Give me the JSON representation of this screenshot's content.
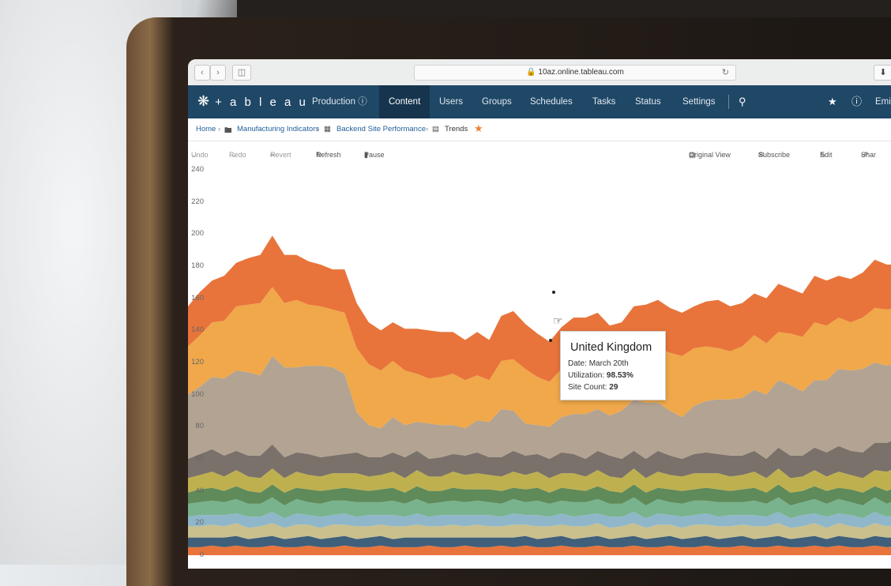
{
  "browser": {
    "url": "10az.online.tableau.com",
    "back_icon": "chevron-left-icon",
    "forward_icon": "chevron-right-icon",
    "sidebar_icon": "sidebar-icon",
    "reload_icon": "reload-icon",
    "download_icon": "download-icon"
  },
  "nav": {
    "logo_text": "+ a b l e a u",
    "site": "Production",
    "items": [
      "Content",
      "Users",
      "Groups",
      "Schedules",
      "Tasks",
      "Status",
      "Settings"
    ],
    "active": "Content",
    "user": "Emi"
  },
  "breadcrumb": {
    "home": "Home",
    "project": "Manufacturing Indicators",
    "workbook": "Backend Site Performance",
    "view": "Trends"
  },
  "toolbar": {
    "undo": "Undo",
    "redo": "Redo",
    "revert": "Revert",
    "refresh": "Refresh",
    "pause": "Pause",
    "original_view": "Original View",
    "subscribe": "Subscribe",
    "edit": "Edit",
    "share": "Shar"
  },
  "tooltip": {
    "title": "United Kingdom",
    "date_label": "Date:",
    "date_value": "March 20th",
    "util_label": "Utilization:",
    "util_value": "98.53%",
    "count_label": "Site Count:",
    "count_value": "29"
  },
  "colors": {
    "nav_bg": "#1f4766",
    "accent_orange": "#e8743b",
    "series": [
      "#e8743b",
      "#f0a84a",
      "#b3a392",
      "#7a716a",
      "#bfb04f",
      "#5f8a5a",
      "#79b38e",
      "#8fb7c9",
      "#c9c08e",
      "#3f5f7a"
    ]
  },
  "chart_data": {
    "type": "area",
    "stacked": true,
    "yticks": [
      0,
      20,
      40,
      60,
      80,
      100,
      120,
      140,
      160,
      180,
      200,
      220,
      240
    ],
    "ylim": [
      0,
      240
    ],
    "xcount": 60,
    "series": [
      {
        "values": [
          5,
          5,
          6,
          5,
          6,
          5,
          5,
          6,
          5,
          5,
          6,
          5,
          5,
          6,
          5,
          5,
          6,
          5,
          5,
          5,
          6,
          5,
          5,
          6,
          5,
          5,
          6,
          5,
          6,
          5,
          5,
          6,
          5,
          5,
          6,
          5,
          5,
          6,
          5,
          5,
          6,
          5,
          5,
          6,
          5,
          5,
          6,
          5,
          5,
          6,
          5,
          5,
          6,
          5,
          6,
          5,
          5,
          6,
          5,
          6
        ]
      },
      {
        "values": [
          6,
          6,
          5,
          6,
          6,
          5,
          6,
          6,
          5,
          6,
          6,
          5,
          6,
          6,
          5,
          6,
          6,
          5,
          6,
          6,
          5,
          6,
          6,
          5,
          6,
          6,
          5,
          6,
          6,
          5,
          6,
          6,
          5,
          6,
          6,
          5,
          6,
          6,
          5,
          6,
          6,
          5,
          6,
          6,
          5,
          6,
          6,
          5,
          6,
          6,
          5,
          6,
          6,
          5,
          6,
          6,
          5,
          6,
          6,
          5
        ]
      },
      {
        "values": [
          7,
          7,
          8,
          7,
          8,
          7,
          7,
          8,
          7,
          8,
          7,
          7,
          8,
          7,
          8,
          7,
          7,
          8,
          7,
          8,
          7,
          7,
          8,
          7,
          8,
          7,
          7,
          8,
          7,
          8,
          7,
          7,
          8,
          7,
          8,
          7,
          7,
          8,
          7,
          8,
          7,
          7,
          8,
          7,
          8,
          7,
          7,
          8,
          7,
          8,
          7,
          7,
          8,
          7,
          8,
          7,
          7,
          8,
          7,
          8
        ]
      },
      {
        "values": [
          6,
          7,
          6,
          7,
          6,
          7,
          6,
          7,
          6,
          7,
          6,
          7,
          6,
          7,
          6,
          7,
          6,
          7,
          6,
          7,
          6,
          7,
          6,
          7,
          6,
          7,
          6,
          7,
          6,
          7,
          6,
          7,
          6,
          7,
          6,
          7,
          6,
          7,
          6,
          7,
          6,
          7,
          6,
          7,
          6,
          7,
          6,
          7,
          6,
          7,
          6,
          7,
          6,
          7,
          6,
          7,
          6,
          7,
          6,
          7
        ]
      },
      {
        "values": [
          8,
          8,
          9,
          8,
          9,
          8,
          8,
          9,
          8,
          9,
          8,
          8,
          9,
          8,
          9,
          8,
          8,
          9,
          8,
          9,
          8,
          8,
          9,
          8,
          9,
          8,
          8,
          9,
          8,
          9,
          8,
          8,
          9,
          8,
          9,
          8,
          8,
          9,
          8,
          9,
          8,
          8,
          9,
          8,
          9,
          8,
          8,
          9,
          8,
          9,
          8,
          8,
          9,
          8,
          9,
          8,
          8,
          9,
          8,
          9
        ]
      },
      {
        "values": [
          7,
          8,
          8,
          7,
          8,
          8,
          7,
          8,
          8,
          7,
          8,
          8,
          7,
          8,
          8,
          7,
          8,
          8,
          7,
          8,
          8,
          7,
          8,
          8,
          7,
          8,
          8,
          7,
          8,
          8,
          7,
          8,
          8,
          7,
          8,
          8,
          7,
          8,
          8,
          7,
          8,
          8,
          7,
          8,
          8,
          7,
          8,
          8,
          7,
          8,
          8,
          7,
          8,
          8,
          7,
          8,
          8,
          7,
          8,
          8
        ]
      },
      {
        "values": [
          9,
          9,
          10,
          9,
          10,
          9,
          9,
          10,
          9,
          10,
          9,
          9,
          10,
          9,
          10,
          9,
          9,
          10,
          9,
          10,
          9,
          9,
          10,
          9,
          10,
          9,
          9,
          10,
          9,
          10,
          9,
          9,
          10,
          9,
          10,
          9,
          9,
          10,
          9,
          10,
          9,
          9,
          10,
          9,
          10,
          9,
          9,
          10,
          9,
          10,
          9,
          9,
          10,
          9,
          10,
          9,
          9,
          10,
          12,
          12
        ]
      },
      {
        "values": [
          12,
          13,
          14,
          13,
          12,
          13,
          14,
          15,
          13,
          12,
          13,
          12,
          11,
          12,
          13,
          12,
          11,
          12,
          13,
          12,
          11,
          12,
          11,
          12,
          13,
          11,
          12,
          13,
          12,
          11,
          12,
          13,
          12,
          11,
          12,
          13,
          12,
          11,
          12,
          13,
          12,
          11,
          12,
          13,
          12,
          13,
          12,
          13,
          12,
          13,
          14,
          13,
          14,
          15,
          16,
          15,
          16,
          17,
          18,
          18
        ]
      },
      {
        "values": [
          40,
          42,
          45,
          48,
          50,
          52,
          50,
          55,
          56,
          53,
          55,
          57,
          55,
          50,
          25,
          20,
          18,
          22,
          20,
          18,
          22,
          20,
          18,
          17,
          20,
          22,
          30,
          25,
          20,
          18,
          20,
          22,
          25,
          28,
          26,
          25,
          30,
          32,
          35,
          30,
          28,
          26,
          30,
          32,
          34,
          35,
          36,
          38,
          40,
          42,
          44,
          40,
          42,
          45,
          48,
          50,
          52,
          50,
          48,
          47
        ]
      },
      {
        "values": [
          30,
          32,
          34,
          36,
          40,
          42,
          45,
          43,
          40,
          42,
          38,
          37,
          36,
          38,
          40,
          38,
          36,
          35,
          34,
          30,
          28,
          30,
          32,
          30,
          28,
          26,
          30,
          32,
          34,
          30,
          28,
          30,
          32,
          30,
          32,
          30,
          28,
          30,
          32,
          34,
          36,
          38,
          36,
          34,
          32,
          30,
          32,
          34,
          32,
          30,
          32,
          34,
          36,
          34,
          32,
          30,
          32,
          34,
          35,
          34
        ]
      },
      {
        "values": [
          25,
          27,
          26,
          28,
          27,
          29,
          30,
          32,
          30,
          28,
          27,
          26,
          25,
          27,
          28,
          26,
          25,
          24,
          26,
          28,
          30,
          28,
          26,
          25,
          27,
          25,
          28,
          30,
          28,
          27,
          25,
          26,
          28,
          30,
          28,
          26,
          27,
          28,
          29,
          30,
          28,
          27,
          26,
          28,
          30,
          28,
          27,
          26,
          28,
          30,
          28,
          27,
          29,
          28,
          26,
          27,
          28,
          30,
          28,
          27
        ]
      }
    ]
  }
}
